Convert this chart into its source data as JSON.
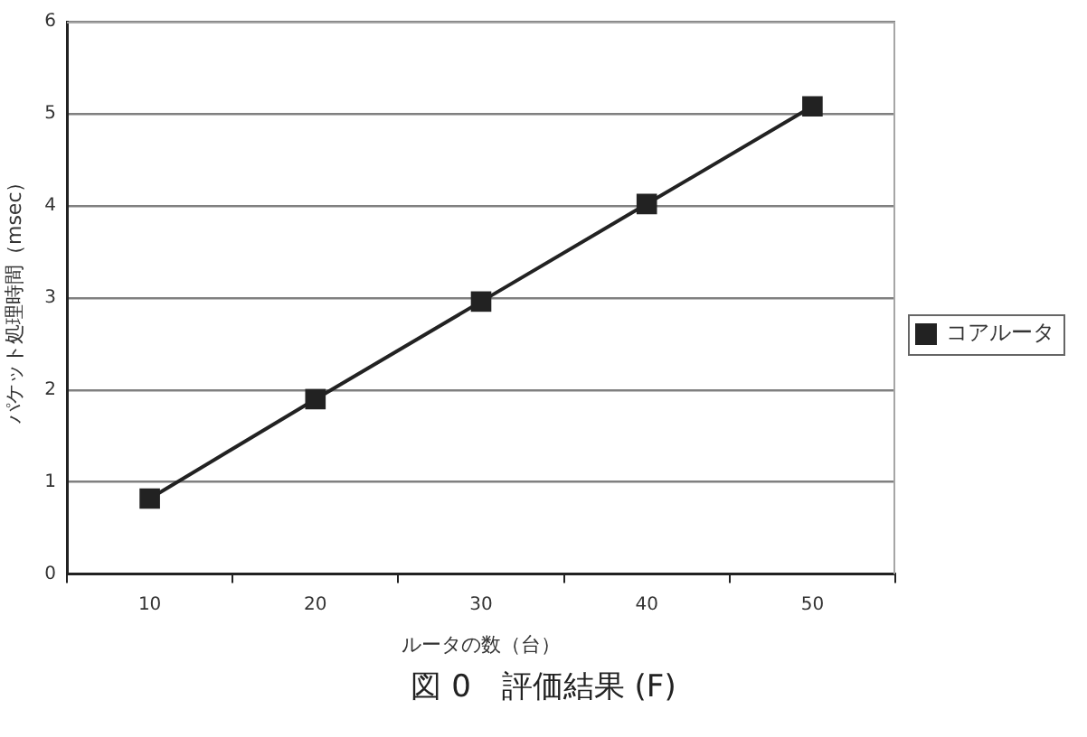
{
  "chart_data": {
    "type": "line",
    "categories": [
      "10",
      "20",
      "30",
      "40",
      "50"
    ],
    "series": [
      {
        "name": "コアルータ",
        "color": "#222222",
        "values": [
          0.82,
          1.9,
          2.96,
          4.02,
          5.08
        ]
      }
    ],
    "xlabel": "ルータの数（台）",
    "ylabel": "パケット処理時間（msec）",
    "ylim": [
      0,
      6
    ],
    "yticks": [
      0,
      1,
      2,
      3,
      4,
      5,
      6
    ],
    "grid": "y",
    "legend": "right",
    "marker": "square",
    "line_style": "solid",
    "annotations": [
      "図 0　評価結果 (F)"
    ]
  }
}
